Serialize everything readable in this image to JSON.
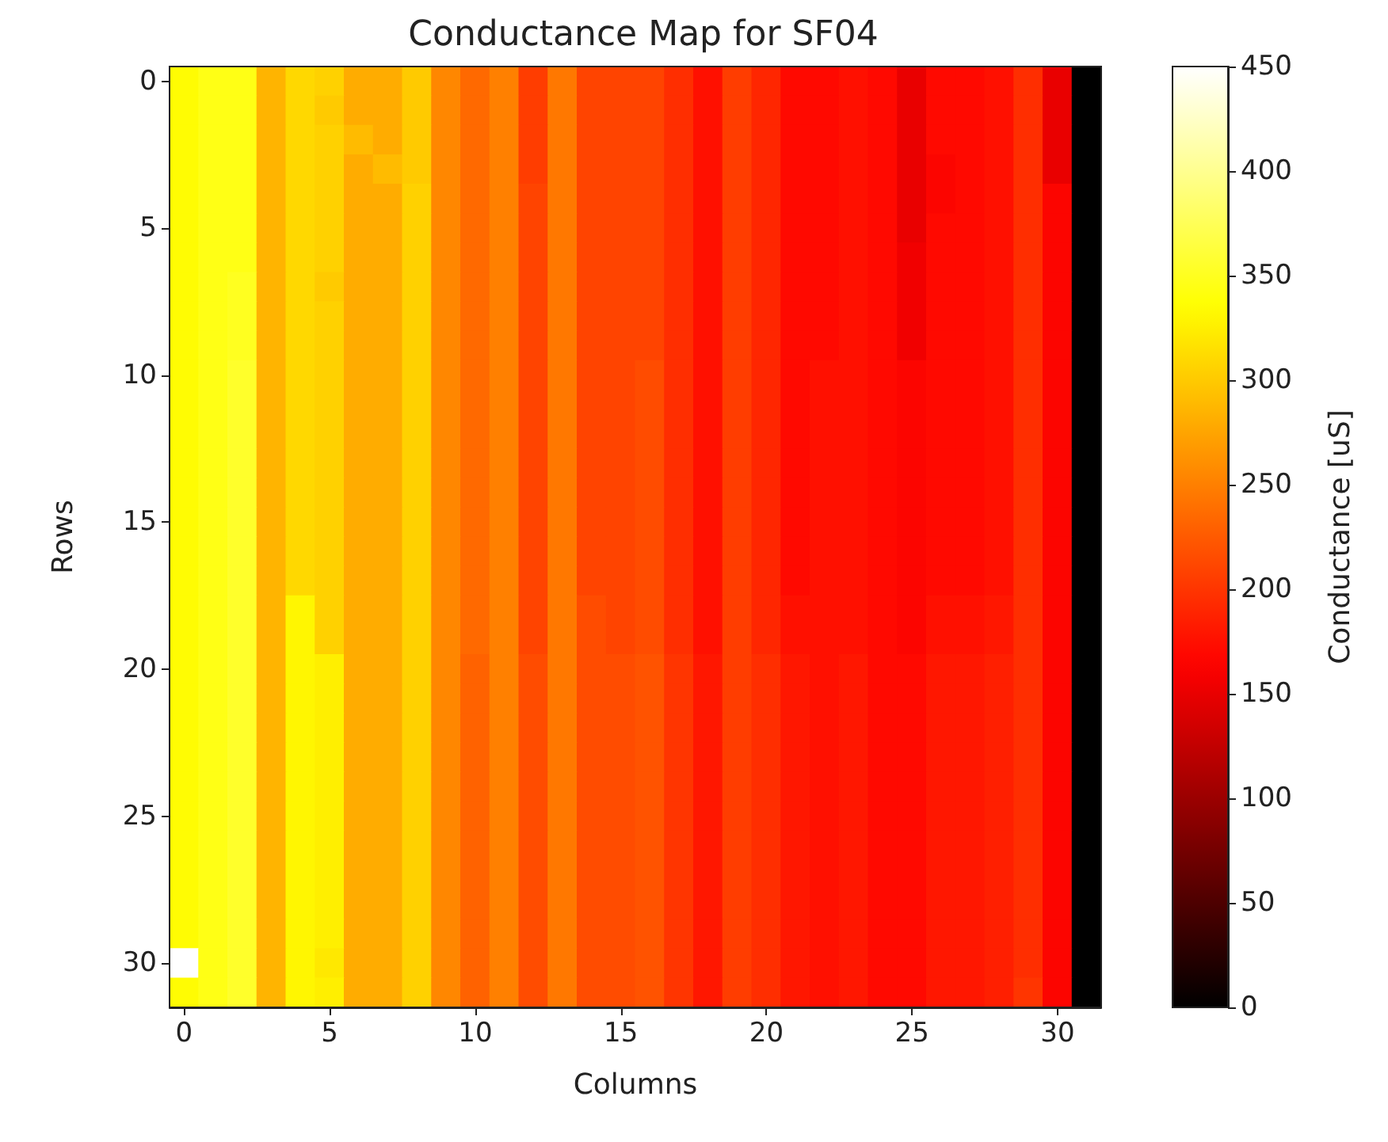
{
  "chart_data": {
    "type": "heatmap",
    "title": "Conductance Map for SF04",
    "xlabel": "Columns",
    "ylabel": "Rows",
    "clabel": "Conductance [uS]",
    "categories": [
      "0",
      null,
      null,
      null,
      null,
      "5",
      null,
      null,
      null,
      null,
      "10",
      null,
      null,
      null,
      null,
      "15",
      null,
      null,
      null,
      null,
      "20",
      null,
      null,
      null,
      null,
      "25",
      null,
      null,
      null,
      null,
      "30",
      null
    ],
    "y_categories": [
      "0",
      null,
      null,
      null,
      null,
      "5",
      null,
      null,
      null,
      null,
      "10",
      null,
      null,
      null,
      null,
      "15",
      null,
      null,
      null,
      null,
      "20",
      null,
      null,
      null,
      null,
      "25",
      null,
      null,
      null,
      null,
      "30",
      null
    ],
    "clim": [
      0,
      450
    ],
    "cticks": [
      0,
      50,
      100,
      150,
      200,
      250,
      300,
      350,
      400,
      450
    ],
    "cells": [
      [
        335,
        345,
        345,
        285,
        310,
        305,
        280,
        280,
        300,
        255,
        235,
        250,
        205,
        245,
        210,
        210,
        210,
        195,
        175,
        205,
        190,
        170,
        170,
        175,
        170,
        150,
        170,
        170,
        175,
        195,
        150,
        0
      ],
      [
        335,
        345,
        345,
        285,
        310,
        300,
        280,
        280,
        300,
        255,
        235,
        250,
        205,
        245,
        210,
        210,
        210,
        195,
        175,
        205,
        190,
        170,
        170,
        175,
        170,
        150,
        170,
        170,
        175,
        195,
        150,
        0
      ],
      [
        335,
        345,
        345,
        285,
        310,
        305,
        290,
        280,
        300,
        255,
        235,
        250,
        205,
        245,
        210,
        210,
        210,
        195,
        175,
        205,
        190,
        170,
        170,
        175,
        170,
        150,
        170,
        170,
        175,
        195,
        150,
        0
      ],
      [
        335,
        345,
        345,
        285,
        310,
        305,
        280,
        290,
        300,
        255,
        235,
        250,
        205,
        245,
        210,
        210,
        210,
        195,
        175,
        205,
        190,
        170,
        170,
        175,
        170,
        150,
        165,
        170,
        175,
        195,
        150,
        0
      ],
      [
        335,
        345,
        345,
        285,
        310,
        305,
        280,
        280,
        305,
        255,
        235,
        250,
        210,
        245,
        210,
        210,
        210,
        195,
        175,
        205,
        190,
        170,
        170,
        175,
        170,
        150,
        165,
        170,
        175,
        195,
        165,
        0
      ],
      [
        335,
        345,
        345,
        285,
        310,
        305,
        280,
        280,
        305,
        255,
        235,
        250,
        210,
        245,
        210,
        210,
        210,
        195,
        175,
        205,
        190,
        170,
        170,
        175,
        170,
        150,
        170,
        170,
        175,
        195,
        165,
        0
      ],
      [
        335,
        345,
        345,
        285,
        310,
        305,
        280,
        280,
        305,
        255,
        235,
        250,
        210,
        245,
        210,
        210,
        210,
        195,
        175,
        205,
        190,
        170,
        170,
        175,
        170,
        155,
        170,
        170,
        175,
        195,
        165,
        0
      ],
      [
        335,
        345,
        350,
        285,
        310,
        300,
        280,
        280,
        305,
        255,
        235,
        250,
        210,
        245,
        210,
        210,
        210,
        195,
        175,
        205,
        190,
        170,
        170,
        175,
        170,
        155,
        170,
        170,
        175,
        195,
        165,
        0
      ],
      [
        335,
        345,
        350,
        285,
        310,
        305,
        280,
        280,
        305,
        255,
        235,
        250,
        210,
        245,
        210,
        210,
        210,
        195,
        175,
        205,
        190,
        170,
        170,
        175,
        170,
        155,
        170,
        170,
        175,
        195,
        165,
        0
      ],
      [
        335,
        345,
        350,
        285,
        310,
        305,
        280,
        280,
        305,
        255,
        235,
        250,
        210,
        245,
        210,
        210,
        210,
        195,
        175,
        205,
        190,
        170,
        170,
        175,
        170,
        155,
        170,
        170,
        175,
        195,
        165,
        0
      ],
      [
        335,
        345,
        355,
        285,
        310,
        305,
        280,
        280,
        305,
        255,
        235,
        250,
        210,
        245,
        210,
        210,
        215,
        195,
        175,
        205,
        190,
        170,
        175,
        175,
        170,
        165,
        170,
        170,
        175,
        195,
        165,
        0
      ],
      [
        335,
        345,
        355,
        285,
        310,
        305,
        280,
        280,
        305,
        255,
        235,
        250,
        210,
        245,
        210,
        210,
        215,
        195,
        175,
        205,
        190,
        170,
        175,
        175,
        170,
        165,
        170,
        170,
        175,
        195,
        165,
        0
      ],
      [
        335,
        345,
        355,
        285,
        310,
        305,
        280,
        280,
        305,
        255,
        235,
        250,
        210,
        245,
        210,
        210,
        215,
        195,
        175,
        205,
        190,
        170,
        175,
        175,
        170,
        165,
        170,
        170,
        175,
        195,
        165,
        0
      ],
      [
        335,
        345,
        355,
        285,
        310,
        305,
        280,
        280,
        305,
        255,
        235,
        250,
        210,
        245,
        210,
        210,
        215,
        195,
        175,
        205,
        190,
        170,
        175,
        175,
        170,
        165,
        170,
        170,
        175,
        195,
        165,
        0
      ],
      [
        335,
        345,
        355,
        285,
        310,
        305,
        280,
        280,
        305,
        255,
        235,
        250,
        210,
        245,
        210,
        210,
        215,
        195,
        175,
        205,
        190,
        170,
        175,
        175,
        170,
        165,
        170,
        170,
        175,
        195,
        165,
        0
      ],
      [
        335,
        345,
        355,
        285,
        310,
        305,
        280,
        280,
        305,
        255,
        235,
        250,
        210,
        245,
        210,
        210,
        215,
        195,
        175,
        205,
        190,
        170,
        175,
        175,
        170,
        165,
        170,
        170,
        175,
        195,
        165,
        0
      ],
      [
        335,
        345,
        355,
        285,
        310,
        305,
        280,
        280,
        305,
        255,
        235,
        250,
        210,
        245,
        210,
        210,
        215,
        195,
        175,
        205,
        190,
        170,
        175,
        175,
        170,
        165,
        170,
        170,
        175,
        195,
        165,
        0
      ],
      [
        335,
        345,
        355,
        285,
        310,
        305,
        280,
        280,
        305,
        255,
        235,
        250,
        210,
        245,
        210,
        210,
        215,
        195,
        175,
        205,
        190,
        170,
        175,
        175,
        170,
        165,
        170,
        170,
        175,
        195,
        165,
        0
      ],
      [
        335,
        345,
        355,
        285,
        330,
        305,
        280,
        280,
        305,
        255,
        235,
        250,
        210,
        245,
        215,
        210,
        215,
        195,
        175,
        205,
        190,
        175,
        175,
        175,
        170,
        165,
        175,
        175,
        180,
        195,
        165,
        0
      ],
      [
        335,
        345,
        355,
        285,
        330,
        305,
        280,
        280,
        305,
        255,
        235,
        250,
        210,
        245,
        215,
        210,
        215,
        195,
        175,
        205,
        190,
        175,
        175,
        175,
        170,
        165,
        175,
        175,
        180,
        195,
        165,
        0
      ],
      [
        335,
        345,
        355,
        285,
        330,
        325,
        280,
        280,
        305,
        255,
        230,
        250,
        215,
        245,
        215,
        215,
        220,
        200,
        180,
        205,
        195,
        180,
        175,
        180,
        170,
        170,
        180,
        180,
        185,
        195,
        165,
        0
      ],
      [
        335,
        345,
        355,
        285,
        330,
        325,
        280,
        280,
        305,
        255,
        230,
        250,
        215,
        245,
        215,
        215,
        220,
        200,
        180,
        205,
        195,
        180,
        175,
        180,
        170,
        170,
        180,
        180,
        185,
        195,
        165,
        0
      ],
      [
        335,
        345,
        355,
        285,
        330,
        325,
        280,
        280,
        305,
        255,
        230,
        250,
        215,
        245,
        215,
        215,
        220,
        200,
        180,
        205,
        195,
        180,
        175,
        180,
        170,
        170,
        180,
        180,
        185,
        195,
        165,
        0
      ],
      [
        335,
        345,
        355,
        285,
        330,
        325,
        280,
        280,
        305,
        255,
        230,
        250,
        215,
        245,
        215,
        215,
        220,
        200,
        180,
        205,
        195,
        180,
        175,
        180,
        170,
        170,
        180,
        180,
        185,
        195,
        165,
        0
      ],
      [
        335,
        345,
        355,
        285,
        330,
        325,
        280,
        280,
        305,
        255,
        230,
        250,
        215,
        245,
        215,
        215,
        220,
        200,
        180,
        205,
        195,
        180,
        175,
        180,
        170,
        170,
        180,
        180,
        185,
        195,
        165,
        0
      ],
      [
        335,
        345,
        355,
        285,
        330,
        325,
        280,
        280,
        305,
        255,
        230,
        250,
        215,
        245,
        215,
        215,
        220,
        200,
        180,
        205,
        195,
        180,
        175,
        180,
        170,
        170,
        180,
        180,
        185,
        195,
        165,
        0
      ],
      [
        335,
        345,
        355,
        285,
        330,
        325,
        280,
        280,
        305,
        255,
        230,
        250,
        215,
        245,
        215,
        215,
        220,
        200,
        180,
        205,
        195,
        180,
        175,
        180,
        170,
        170,
        180,
        180,
        185,
        195,
        165,
        0
      ],
      [
        335,
        345,
        355,
        285,
        330,
        325,
        280,
        280,
        305,
        255,
        230,
        250,
        215,
        245,
        215,
        215,
        220,
        200,
        180,
        205,
        195,
        180,
        175,
        180,
        170,
        170,
        180,
        180,
        185,
        195,
        165,
        0
      ],
      [
        335,
        345,
        355,
        285,
        330,
        325,
        280,
        280,
        305,
        255,
        230,
        250,
        215,
        245,
        215,
        215,
        220,
        200,
        180,
        205,
        195,
        180,
        175,
        180,
        170,
        170,
        180,
        180,
        185,
        195,
        165,
        0
      ],
      [
        335,
        345,
        355,
        285,
        330,
        325,
        280,
        280,
        305,
        255,
        230,
        250,
        215,
        245,
        215,
        215,
        220,
        200,
        180,
        205,
        195,
        180,
        175,
        180,
        170,
        170,
        180,
        180,
        185,
        195,
        165,
        0
      ],
      [
        450,
        345,
        355,
        285,
        330,
        320,
        280,
        280,
        305,
        255,
        230,
        250,
        215,
        245,
        215,
        215,
        220,
        200,
        180,
        205,
        195,
        180,
        175,
        180,
        170,
        170,
        180,
        180,
        185,
        195,
        165,
        0
      ],
      [
        335,
        345,
        355,
        285,
        330,
        325,
        280,
        280,
        305,
        255,
        230,
        250,
        215,
        245,
        215,
        215,
        220,
        200,
        180,
        205,
        195,
        180,
        175,
        180,
        170,
        170,
        180,
        180,
        185,
        200,
        165,
        0
      ]
    ]
  }
}
